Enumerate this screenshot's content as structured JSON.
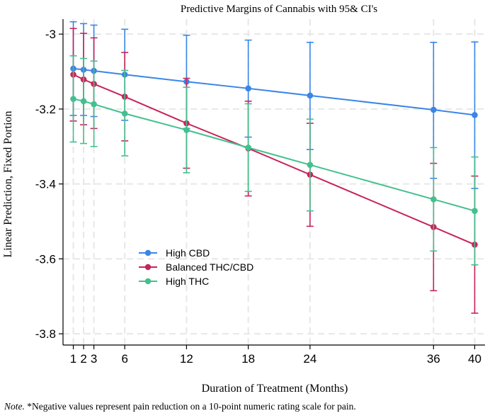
{
  "chart_data": {
    "type": "line",
    "title": "Predictive Margins of Cannabis with 95& CI's",
    "xlabel": "Duration of Treatment (Months)",
    "ylabel": "Linear Prediction, Fixed Portion",
    "x": [
      1,
      2,
      3,
      6,
      12,
      18,
      24,
      36,
      40
    ],
    "x_ticks": [
      "1",
      "2",
      "3",
      "6",
      "12",
      "18",
      "24",
      "36",
      "40"
    ],
    "y_ticks": [
      "-3",
      "-3.2",
      "-3.4",
      "-3.6",
      "-3.8"
    ],
    "y_tick_values": [
      -3.0,
      -3.2,
      -3.4,
      -3.6,
      -3.8
    ],
    "xlim": [
      0,
      41
    ],
    "ylim": [
      -3.83,
      -2.96
    ],
    "grid": true,
    "legend_position": "bottom-left",
    "series": [
      {
        "name": "High CBD",
        "color": "#3a86e8",
        "values": [
          -3.092,
          -3.095,
          -3.098,
          -3.108,
          -3.127,
          -3.145,
          -3.164,
          -3.202,
          -3.216
        ],
        "ci_low": [
          -3.217,
          -3.217,
          -3.22,
          -3.23,
          -3.252,
          -3.275,
          -3.308,
          -3.385,
          -3.412
        ],
        "ci_high": [
          -2.967,
          -2.972,
          -2.976,
          -2.987,
          -3.003,
          -3.016,
          -3.022,
          -3.022,
          -3.021
        ]
      },
      {
        "name": "Balanced THC/CBD",
        "color": "#c8245a",
        "values": [
          -3.108,
          -3.121,
          -3.133,
          -3.167,
          -3.238,
          -3.305,
          -3.375,
          -3.515,
          -3.562
        ],
        "ci_low": [
          -3.232,
          -3.242,
          -3.252,
          -3.285,
          -3.358,
          -3.432,
          -3.513,
          -3.685,
          -3.745
        ],
        "ci_high": [
          -2.985,
          -2.998,
          -3.01,
          -3.049,
          -3.118,
          -3.179,
          -3.238,
          -3.345,
          -3.379
        ]
      },
      {
        "name": "High THC",
        "color": "#43c08e",
        "values": [
          -3.173,
          -3.179,
          -3.187,
          -3.212,
          -3.256,
          -3.303,
          -3.349,
          -3.441,
          -3.472
        ],
        "ci_low": [
          -3.288,
          -3.292,
          -3.3,
          -3.325,
          -3.37,
          -3.42,
          -3.472,
          -3.579,
          -3.616
        ],
        "ci_high": [
          -3.058,
          -3.065,
          -3.072,
          -3.097,
          -3.142,
          -3.186,
          -3.227,
          -3.303,
          -3.328
        ]
      }
    ]
  },
  "note": {
    "label": "Note.",
    "text": " *Negative values represent pain reduction on a 10-point numeric rating scale for pain."
  }
}
